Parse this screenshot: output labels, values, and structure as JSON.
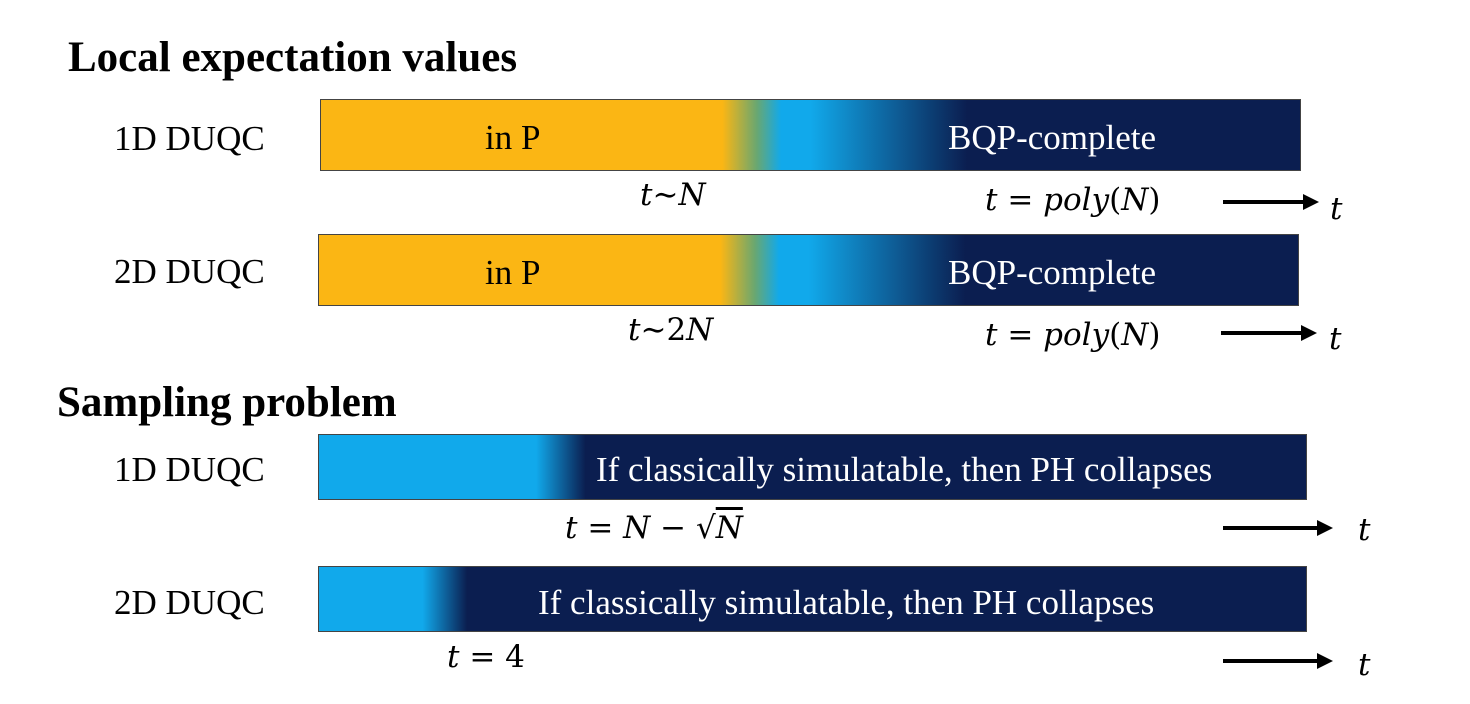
{
  "headings": {
    "local": "Local expectation values",
    "sampling": "Sampling problem"
  },
  "rows": [
    {
      "label": "1D DUQC",
      "regions": [
        "in P",
        "BQP-complete"
      ],
      "transition": [
        "t",
        "∼",
        "N"
      ],
      "end": [
        "t",
        " = ",
        "poly",
        "(",
        "N",
        ")"
      ],
      "arrow_label": "t"
    },
    {
      "label": "2D DUQC",
      "regions": [
        "in P",
        "BQP-complete"
      ],
      "transition": [
        "t",
        "∼2",
        "N"
      ],
      "end": [
        "t",
        " = ",
        "poly",
        "(",
        "N",
        ")"
      ],
      "arrow_label": "t"
    },
    {
      "label": "1D DUQC",
      "regions": [
        "If classically simulatable, then PH collapses"
      ],
      "transition": [
        "t",
        " = ",
        "N",
        " − √",
        "N"
      ],
      "arrow_label": "t"
    },
    {
      "label": "2D DUQC",
      "regions": [
        "If classically simulatable, then PH collapses"
      ],
      "transition": [
        "t",
        " = 4"
      ],
      "arrow_label": "t"
    }
  ],
  "colors": {
    "in_p": "#fbb614",
    "transition_light": "#11a9eb",
    "bqp_dark": "#0b1e50",
    "bqp_text": "#ffffff",
    "in_p_text": "#000000"
  }
}
